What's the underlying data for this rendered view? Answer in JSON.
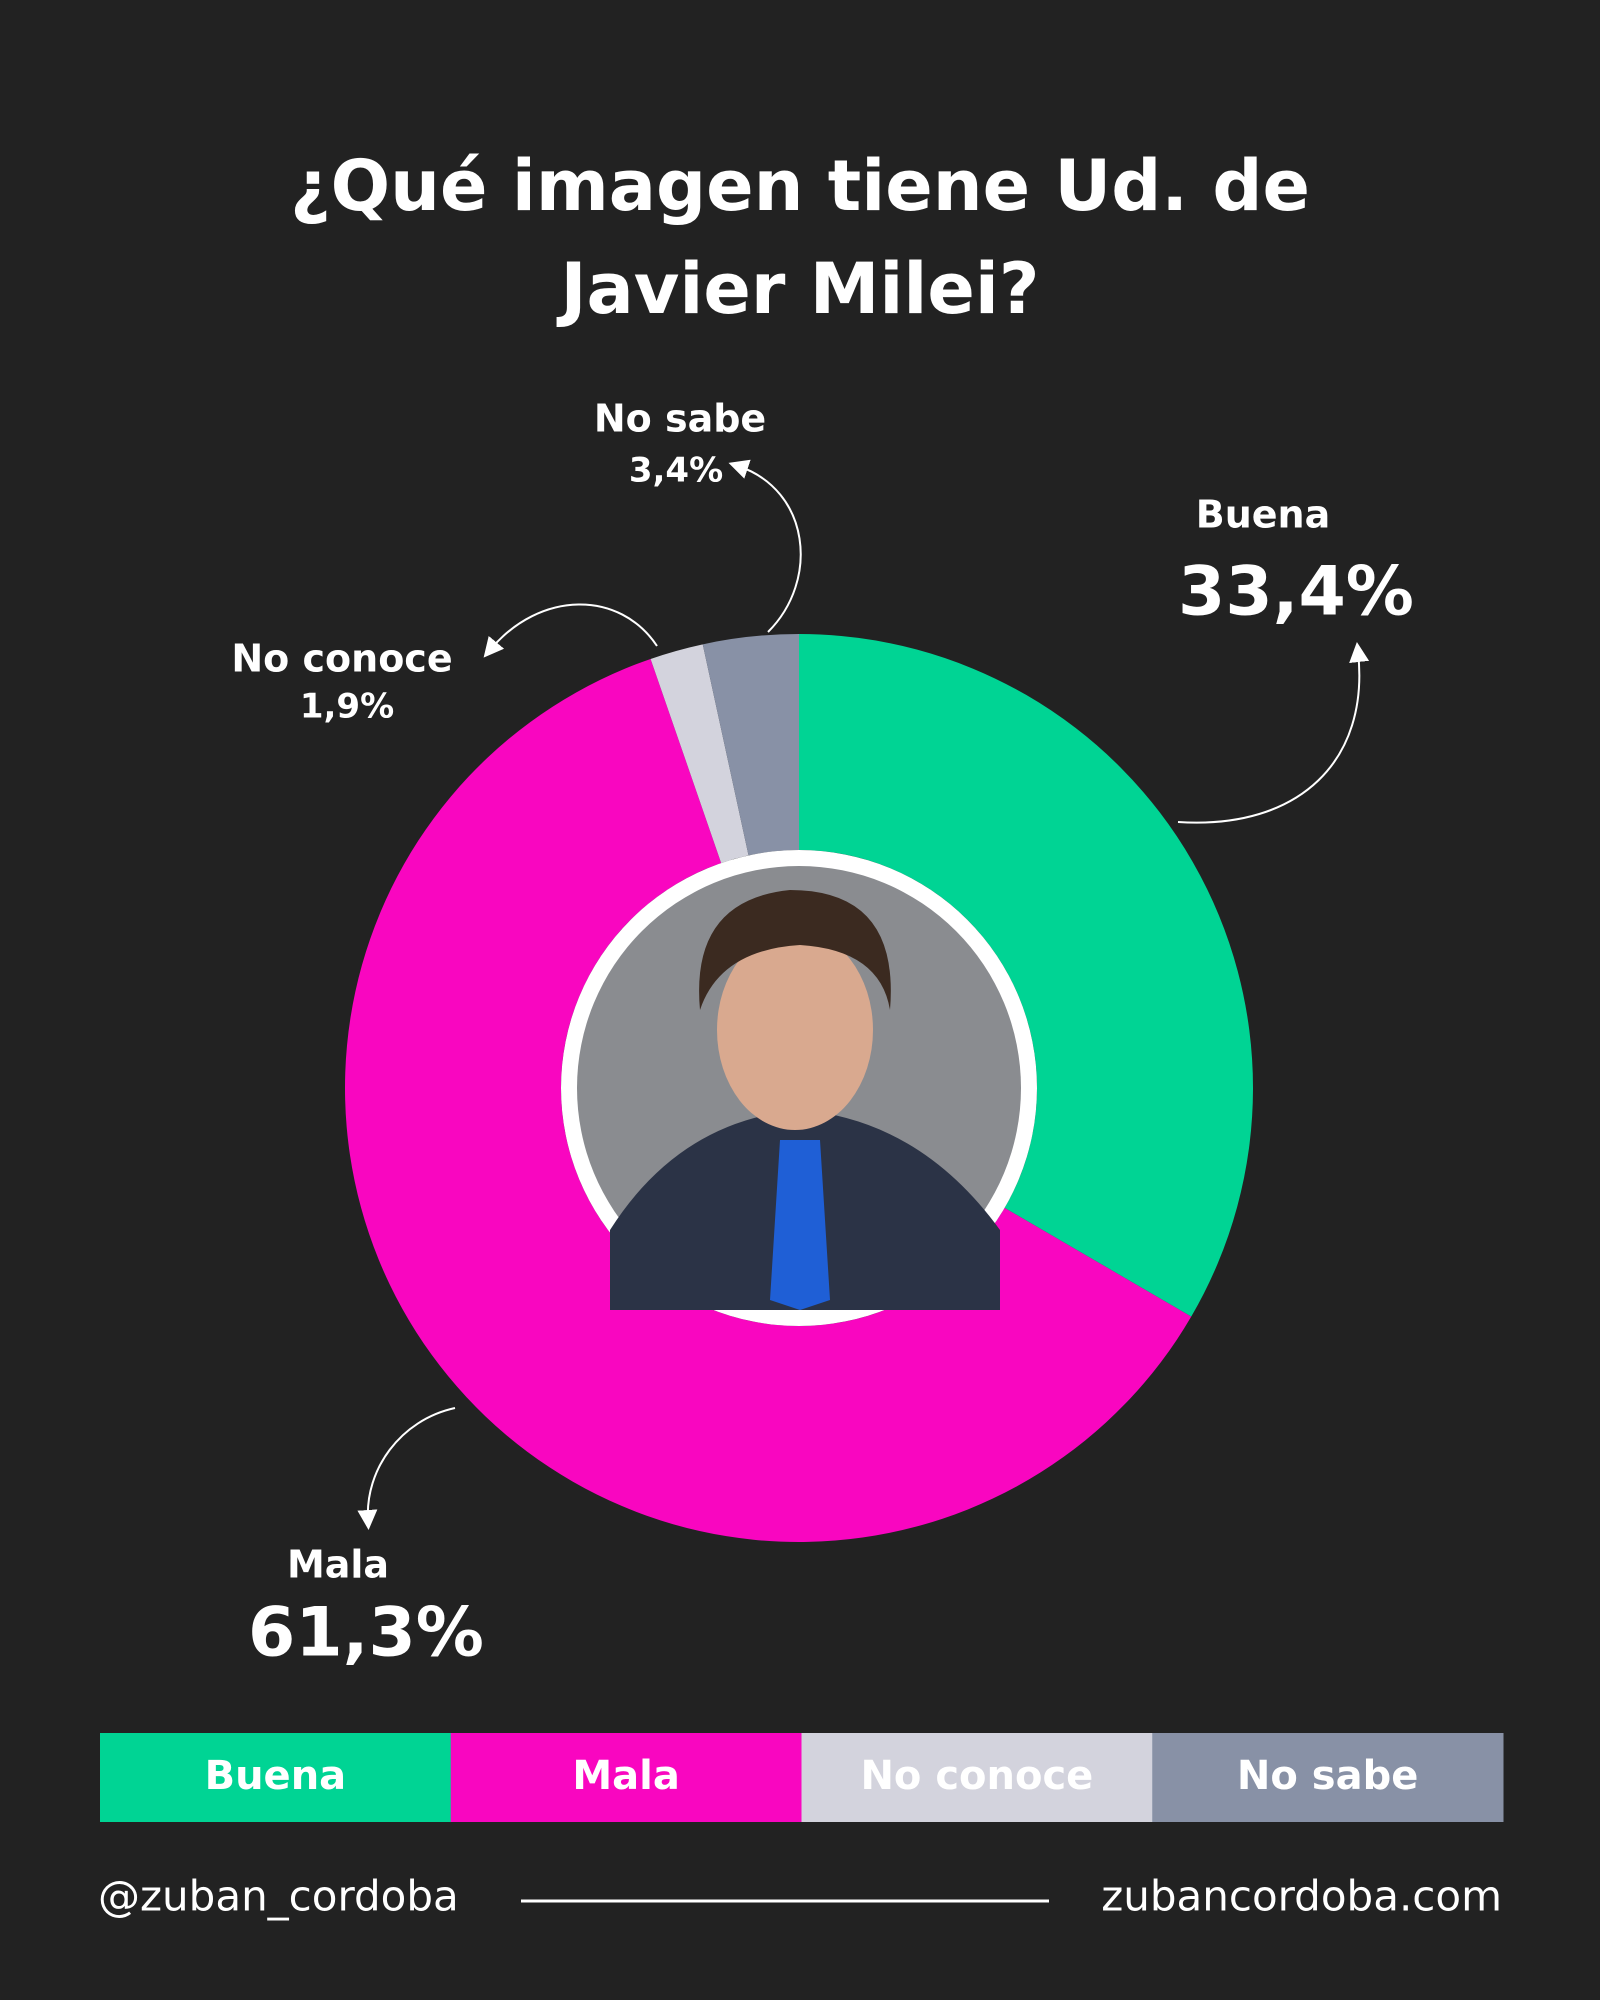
{
  "chart_data": {
    "type": "donut",
    "title": "¿Qué imagen tiene Ud. de Javier Milei?",
    "categories": [
      "Buena",
      "Mala",
      "No conoce",
      "No sabe"
    ],
    "values": [
      33.4,
      61.3,
      1.9,
      3.4
    ],
    "value_labels": [
      "33,4%",
      "61,3%",
      "1,9%",
      "3,4%"
    ],
    "colors": [
      "#00d494",
      "#f906c0",
      "#d3d3dd",
      "#8891a6"
    ]
  },
  "footer": {
    "left": "@zuban_cordoba",
    "right": "zubancordoba.com"
  }
}
